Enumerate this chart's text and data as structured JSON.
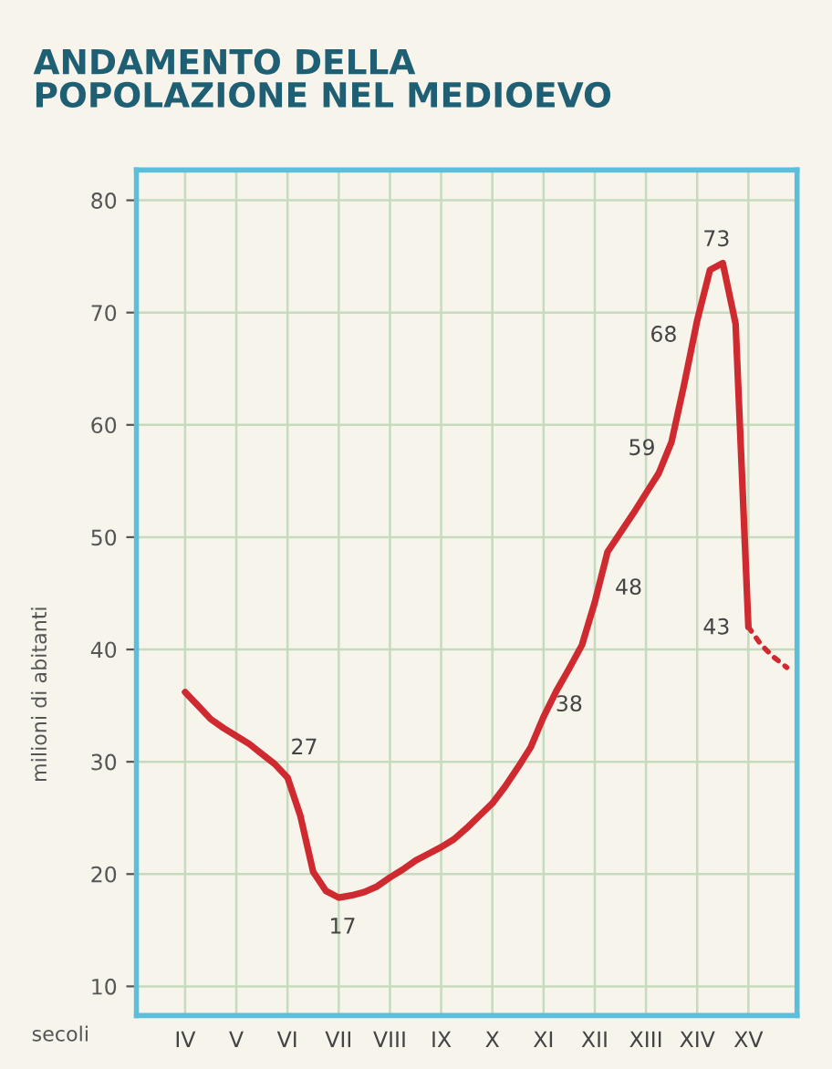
{
  "chart_data": {
    "type": "line",
    "title": "ANDAMENTO DELLA\nPOPOLAZIONE NEL MEDIOEVO",
    "xlabel": "secoli",
    "ylabel": "milioni di abitanti",
    "categories": [
      "IV",
      null,
      null,
      null,
      "V",
      null,
      null,
      null,
      "VI",
      null,
      null,
      null,
      "VII",
      null,
      null,
      null,
      "VIII",
      null,
      null,
      null,
      "IX",
      null,
      null,
      null,
      "X",
      null,
      null,
      null,
      "XI",
      null,
      null,
      null,
      "XII",
      null,
      null,
      null,
      "XIII",
      null,
      null,
      null,
      "XIV",
      null,
      null,
      null,
      "XV",
      null,
      null,
      null
    ],
    "ylim": [
      7.4,
      82.7
    ],
    "yticks": [
      10,
      20,
      30,
      40,
      50,
      60,
      70,
      80
    ],
    "grid": true,
    "series": [
      {
        "color": "#cf2a30",
        "line_style": "solid",
        "values": [
          36.2,
          35.0,
          33.8,
          33.0,
          32.3,
          31.6,
          30.7,
          29.8,
          28.6,
          25.2,
          20.2,
          18.5,
          17.9,
          18.1,
          18.4,
          18.9,
          19.7,
          20.4,
          21.2,
          21.8,
          22.4,
          23.1,
          24.1,
          25.2,
          26.3,
          27.8,
          29.5,
          31.3,
          34.0,
          36.3,
          38.3,
          40.4,
          44.2,
          48.7,
          50.4,
          52.1,
          53.9,
          55.7,
          58.5,
          63.7,
          69.3,
          73.8,
          74.4,
          69.0,
          42.0,
          null,
          null,
          null
        ]
      },
      {
        "color": "#cf2a30",
        "line_style": "dotted",
        "values": [
          null,
          null,
          null,
          null,
          null,
          null,
          null,
          null,
          null,
          null,
          null,
          null,
          null,
          null,
          null,
          null,
          null,
          null,
          null,
          null,
          null,
          null,
          null,
          null,
          null,
          null,
          null,
          null,
          null,
          null,
          null,
          null,
          null,
          null,
          null,
          null,
          null,
          null,
          null,
          null,
          null,
          null,
          null,
          null,
          42.0,
          40.4,
          39.3,
          38.4
        ]
      }
    ],
    "annotations": [
      "27",
      "17",
      "38",
      "48",
      "59",
      "68",
      "73",
      "43"
    ]
  }
}
